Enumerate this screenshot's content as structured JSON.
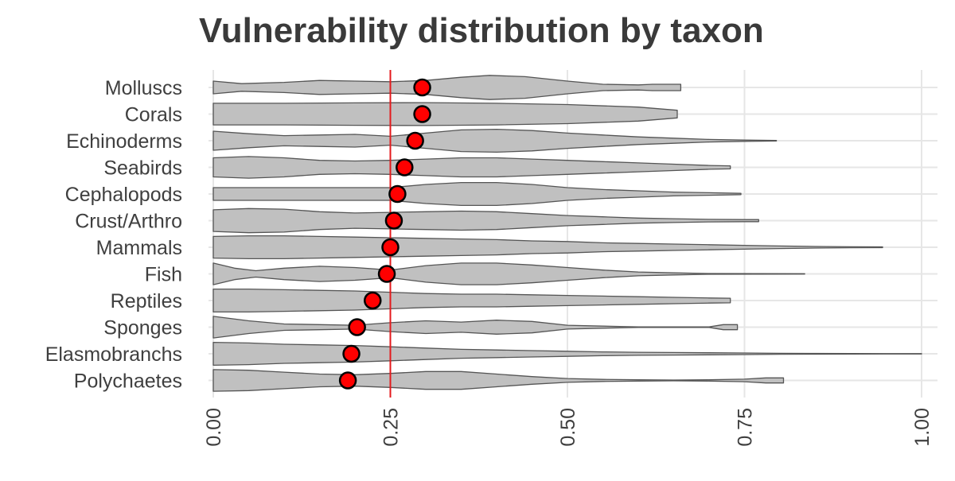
{
  "chart_data": {
    "type": "violin",
    "title": "Vulnerability distribution by taxon",
    "xlabel": "",
    "ylabel": "",
    "xlim": [
      0,
      1
    ],
    "x_ticks": [
      "0.00",
      "0.25",
      "0.50",
      "0.75",
      "1.00"
    ],
    "x_tick_values": [
      0,
      0.25,
      0.5,
      0.75,
      1.0
    ],
    "reference_line": {
      "x": 0.25,
      "color": "#e41a1c"
    },
    "grid": true,
    "legend": "none",
    "colors": {
      "violin_fill": "#c0c0c0",
      "violin_stroke": "#555555",
      "mean_point_fill": "#ff0000",
      "mean_point_stroke": "#000000",
      "grid": "#e6e6e6",
      "title": "#3a3a3a",
      "tick_label": "#3f3f3f"
    },
    "series": [
      {
        "name": "Molluscs",
        "mean": 0.295,
        "min": 0.0,
        "max": 0.66,
        "density": [
          [
            0,
            0.5
          ],
          [
            0.04,
            0.3
          ],
          [
            0.1,
            0.4
          ],
          [
            0.15,
            0.55
          ],
          [
            0.2,
            0.5
          ],
          [
            0.25,
            0.45
          ],
          [
            0.3,
            0.55
          ],
          [
            0.35,
            0.8
          ],
          [
            0.39,
            0.95
          ],
          [
            0.44,
            0.85
          ],
          [
            0.5,
            0.5
          ],
          [
            0.55,
            0.25
          ],
          [
            0.6,
            0.2
          ],
          [
            0.62,
            0.25
          ],
          [
            0.66,
            0.25
          ]
        ]
      },
      {
        "name": "Corals",
        "mean": 0.295,
        "min": 0.0,
        "max": 0.655,
        "density": [
          [
            0,
            0.85
          ],
          [
            0.1,
            0.85
          ],
          [
            0.2,
            0.88
          ],
          [
            0.3,
            0.9
          ],
          [
            0.4,
            0.85
          ],
          [
            0.5,
            0.75
          ],
          [
            0.6,
            0.55
          ],
          [
            0.655,
            0.3
          ]
        ]
      },
      {
        "name": "Echinoderms",
        "mean": 0.285,
        "min": 0.0,
        "max": 0.795,
        "density": [
          [
            0,
            0.75
          ],
          [
            0.05,
            0.55
          ],
          [
            0.1,
            0.4
          ],
          [
            0.15,
            0.45
          ],
          [
            0.2,
            0.5
          ],
          [
            0.25,
            0.35
          ],
          [
            0.3,
            0.6
          ],
          [
            0.35,
            0.85
          ],
          [
            0.4,
            0.9
          ],
          [
            0.45,
            0.8
          ],
          [
            0.5,
            0.6
          ],
          [
            0.55,
            0.45
          ],
          [
            0.6,
            0.3
          ],
          [
            0.65,
            0.2
          ],
          [
            0.7,
            0.1
          ],
          [
            0.75,
            0.05
          ],
          [
            0.795,
            0.02
          ]
        ]
      },
      {
        "name": "Seabirds",
        "mean": 0.27,
        "min": 0.0,
        "max": 0.73,
        "density": [
          [
            0,
            0.75
          ],
          [
            0.05,
            0.85
          ],
          [
            0.1,
            0.75
          ],
          [
            0.15,
            0.55
          ],
          [
            0.2,
            0.5
          ],
          [
            0.25,
            0.55
          ],
          [
            0.3,
            0.65
          ],
          [
            0.35,
            0.75
          ],
          [
            0.4,
            0.75
          ],
          [
            0.45,
            0.65
          ],
          [
            0.5,
            0.55
          ],
          [
            0.55,
            0.45
          ],
          [
            0.6,
            0.35
          ],
          [
            0.65,
            0.25
          ],
          [
            0.7,
            0.15
          ],
          [
            0.73,
            0.12
          ]
        ]
      },
      {
        "name": "Cephalopods",
        "mean": 0.26,
        "min": 0.0,
        "max": 0.745,
        "density": [
          [
            0,
            0.5
          ],
          [
            0.05,
            0.5
          ],
          [
            0.1,
            0.5
          ],
          [
            0.15,
            0.5
          ],
          [
            0.2,
            0.5
          ],
          [
            0.25,
            0.5
          ],
          [
            0.3,
            0.75
          ],
          [
            0.35,
            0.9
          ],
          [
            0.4,
            0.9
          ],
          [
            0.45,
            0.75
          ],
          [
            0.5,
            0.5
          ],
          [
            0.55,
            0.35
          ],
          [
            0.6,
            0.25
          ],
          [
            0.65,
            0.15
          ],
          [
            0.7,
            0.1
          ],
          [
            0.745,
            0.05
          ]
        ]
      },
      {
        "name": "Crust/Arthro",
        "mean": 0.255,
        "min": 0.0,
        "max": 0.77,
        "density": [
          [
            0,
            0.85
          ],
          [
            0.05,
            0.95
          ],
          [
            0.1,
            0.9
          ],
          [
            0.15,
            0.7
          ],
          [
            0.2,
            0.6
          ],
          [
            0.25,
            0.65
          ],
          [
            0.3,
            0.7
          ],
          [
            0.35,
            0.75
          ],
          [
            0.4,
            0.7
          ],
          [
            0.45,
            0.55
          ],
          [
            0.5,
            0.4
          ],
          [
            0.55,
            0.3
          ],
          [
            0.6,
            0.2
          ],
          [
            0.65,
            0.15
          ],
          [
            0.7,
            0.1
          ],
          [
            0.75,
            0.08
          ],
          [
            0.77,
            0.08
          ]
        ]
      },
      {
        "name": "Mammals",
        "mean": 0.25,
        "min": 0.0,
        "max": 0.945,
        "density": [
          [
            0,
            0.85
          ],
          [
            0.05,
            0.9
          ],
          [
            0.1,
            0.9
          ],
          [
            0.15,
            0.85
          ],
          [
            0.2,
            0.8
          ],
          [
            0.25,
            0.75
          ],
          [
            0.3,
            0.7
          ],
          [
            0.35,
            0.65
          ],
          [
            0.4,
            0.6
          ],
          [
            0.45,
            0.5
          ],
          [
            0.5,
            0.45
          ],
          [
            0.55,
            0.35
          ],
          [
            0.6,
            0.3
          ],
          [
            0.65,
            0.25
          ],
          [
            0.7,
            0.2
          ],
          [
            0.75,
            0.15
          ],
          [
            0.8,
            0.1
          ],
          [
            0.85,
            0.06
          ],
          [
            0.9,
            0.04
          ],
          [
            0.945,
            0.03
          ]
        ]
      },
      {
        "name": "Fish",
        "mean": 0.245,
        "min": 0.0,
        "max": 0.835,
        "density": [
          [
            0,
            0.85
          ],
          [
            0.03,
            0.45
          ],
          [
            0.06,
            0.25
          ],
          [
            0.1,
            0.45
          ],
          [
            0.15,
            0.6
          ],
          [
            0.2,
            0.5
          ],
          [
            0.25,
            0.3
          ],
          [
            0.3,
            0.65
          ],
          [
            0.35,
            0.85
          ],
          [
            0.4,
            0.85
          ],
          [
            0.45,
            0.7
          ],
          [
            0.5,
            0.5
          ],
          [
            0.55,
            0.3
          ],
          [
            0.6,
            0.15
          ],
          [
            0.65,
            0.08
          ],
          [
            0.7,
            0.03
          ],
          [
            0.835,
            0.01
          ]
        ]
      },
      {
        "name": "Reptiles",
        "mean": 0.225,
        "min": 0.0,
        "max": 0.73,
        "density": [
          [
            0,
            0.9
          ],
          [
            0.05,
            0.9
          ],
          [
            0.1,
            0.85
          ],
          [
            0.15,
            0.8
          ],
          [
            0.2,
            0.75
          ],
          [
            0.25,
            0.65
          ],
          [
            0.3,
            0.55
          ],
          [
            0.35,
            0.5
          ],
          [
            0.4,
            0.5
          ],
          [
            0.45,
            0.45
          ],
          [
            0.5,
            0.4
          ],
          [
            0.55,
            0.35
          ],
          [
            0.6,
            0.3
          ],
          [
            0.65,
            0.25
          ],
          [
            0.7,
            0.2
          ],
          [
            0.73,
            0.18
          ]
        ]
      },
      {
        "name": "Sponges",
        "mean": 0.203,
        "min": 0.0,
        "max": 0.74,
        "density": [
          [
            0,
            0.85
          ],
          [
            0.05,
            0.5
          ],
          [
            0.1,
            0.25
          ],
          [
            0.15,
            0.2
          ],
          [
            0.2,
            0.15
          ],
          [
            0.25,
            0.35
          ],
          [
            0.3,
            0.5
          ],
          [
            0.35,
            0.4
          ],
          [
            0.4,
            0.55
          ],
          [
            0.45,
            0.45
          ],
          [
            0.5,
            0.15
          ],
          [
            0.55,
            0.08
          ],
          [
            0.6,
            0.02
          ],
          [
            0.7,
            0.02
          ],
          [
            0.72,
            0.2
          ],
          [
            0.74,
            0.2
          ]
        ]
      },
      {
        "name": "Elasmobranchs",
        "mean": 0.195,
        "min": 0.0,
        "max": 1.0,
        "density": [
          [
            0,
            0.9
          ],
          [
            0.05,
            0.85
          ],
          [
            0.1,
            0.75
          ],
          [
            0.15,
            0.7
          ],
          [
            0.2,
            0.65
          ],
          [
            0.25,
            0.55
          ],
          [
            0.3,
            0.45
          ],
          [
            0.35,
            0.35
          ],
          [
            0.4,
            0.3
          ],
          [
            0.45,
            0.25
          ],
          [
            0.5,
            0.2
          ],
          [
            0.55,
            0.15
          ],
          [
            0.6,
            0.12
          ],
          [
            0.65,
            0.1
          ],
          [
            0.7,
            0.08
          ],
          [
            0.75,
            0.06
          ],
          [
            0.8,
            0.04
          ],
          [
            0.85,
            0.03
          ],
          [
            0.9,
            0.02
          ],
          [
            0.95,
            0.01
          ],
          [
            1.0,
            0.01
          ]
        ]
      },
      {
        "name": "Polychaetes",
        "mean": 0.19,
        "min": 0.0,
        "max": 0.805,
        "density": [
          [
            0,
            0.85
          ],
          [
            0.05,
            0.8
          ],
          [
            0.1,
            0.65
          ],
          [
            0.15,
            0.5
          ],
          [
            0.2,
            0.45
          ],
          [
            0.25,
            0.55
          ],
          [
            0.3,
            0.7
          ],
          [
            0.35,
            0.7
          ],
          [
            0.4,
            0.5
          ],
          [
            0.45,
            0.3
          ],
          [
            0.5,
            0.15
          ],
          [
            0.55,
            0.08
          ],
          [
            0.6,
            0.05
          ],
          [
            0.65,
            0.03
          ],
          [
            0.7,
            0.05
          ],
          [
            0.75,
            0.1
          ],
          [
            0.78,
            0.2
          ],
          [
            0.805,
            0.2
          ]
        ]
      }
    ]
  }
}
